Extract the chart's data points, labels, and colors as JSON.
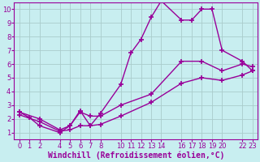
{
  "xlabel": "Windchill (Refroidissement éolien,°C)",
  "bg_color": "#c8eef0",
  "line_color": "#990099",
  "grid_color": "#aacccc",
  "xlim": [
    -0.5,
    23.5
  ],
  "ylim": [
    0.5,
    10.5
  ],
  "xticks": [
    0,
    1,
    2,
    4,
    5,
    6,
    7,
    8,
    10,
    11,
    12,
    13,
    14,
    16,
    17,
    18,
    19,
    20,
    22,
    23
  ],
  "yticks": [
    1,
    2,
    3,
    4,
    5,
    6,
    7,
    8,
    9,
    10
  ],
  "series1_x": [
    0,
    1,
    2,
    4,
    5,
    6,
    7,
    8,
    10,
    11,
    12,
    13,
    14,
    16,
    17,
    18,
    19,
    20,
    22,
    23
  ],
  "series1_y": [
    2.5,
    2.1,
    1.5,
    1.0,
    1.5,
    2.6,
    1.5,
    2.4,
    4.5,
    6.8,
    7.8,
    9.4,
    10.6,
    9.2,
    9.2,
    10.0,
    10.0,
    7.0,
    6.2,
    5.5
  ],
  "series2_x": [
    0,
    2,
    4,
    5,
    6,
    7,
    8,
    10,
    13,
    16,
    18,
    20,
    22,
    23
  ],
  "series2_y": [
    2.5,
    2.0,
    1.2,
    1.5,
    2.5,
    2.2,
    2.2,
    3.0,
    3.8,
    6.2,
    6.2,
    5.5,
    6.0,
    5.8
  ],
  "series3_x": [
    0,
    2,
    4,
    5,
    6,
    7,
    8,
    10,
    13,
    16,
    18,
    20,
    22,
    23
  ],
  "series3_y": [
    2.3,
    1.8,
    1.1,
    1.2,
    1.5,
    1.5,
    1.6,
    2.2,
    3.2,
    4.6,
    5.0,
    4.8,
    5.2,
    5.5
  ],
  "marker": "+",
  "markersize": 4,
  "linewidth": 1.0,
  "xlabel_fontsize": 7,
  "tick_fontsize": 6
}
